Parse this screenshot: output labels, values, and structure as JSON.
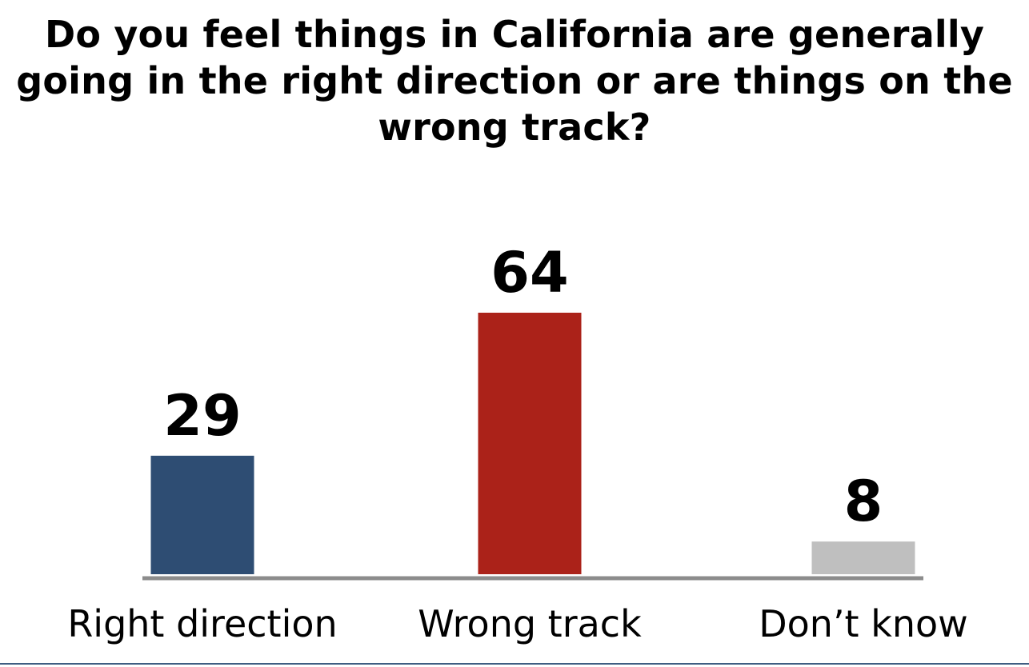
{
  "chart_data": {
    "type": "bar",
    "title": "Do you feel things in California are generally going in the right direction or are things on the wrong track?",
    "xlabel": "",
    "ylabel": "",
    "categories": [
      "Right direction",
      "Wrong track",
      "Don’t know"
    ],
    "values": [
      29,
      64,
      8
    ],
    "data_labels": [
      "29",
      "64",
      "8"
    ],
    "colors": [
      "#2e4d73",
      "#ab2219",
      "#bfbfbf"
    ],
    "axis_color": "#8c8c8c",
    "ylim": [
      0,
      64
    ],
    "grid": false,
    "legend": "none"
  }
}
